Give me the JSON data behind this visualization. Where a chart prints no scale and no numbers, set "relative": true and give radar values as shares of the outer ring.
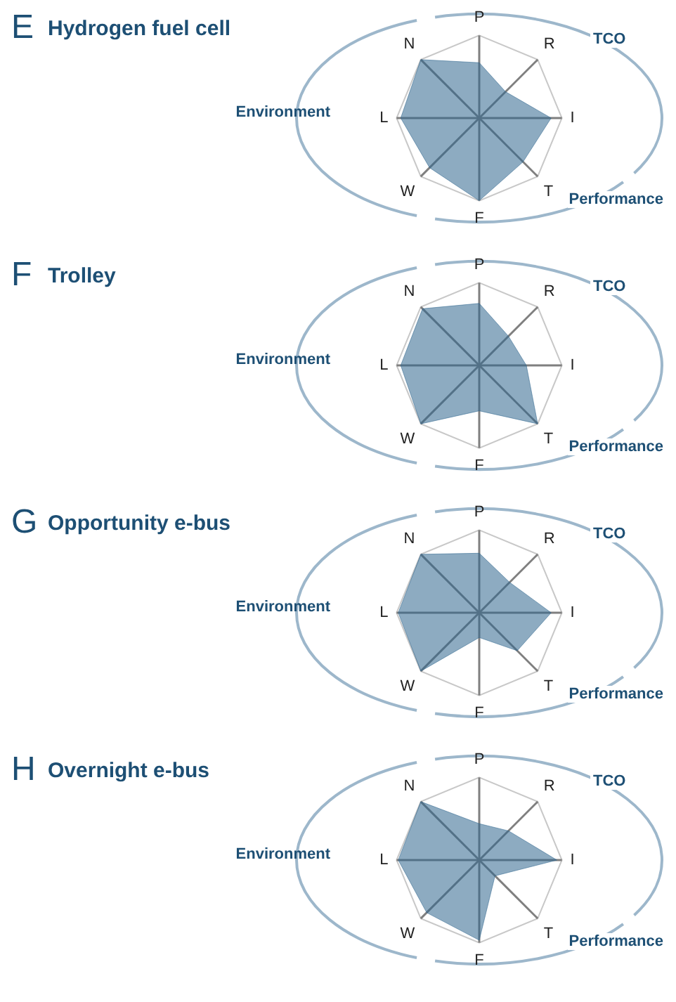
{
  "chart_data": [
    {
      "type": "radar",
      "title": "Hydrogen fuel cell",
      "annotations": [
        "E",
        "TCO",
        "Performance",
        "Environment"
      ],
      "categories": [
        "P",
        "R",
        "I",
        "T",
        "F",
        "W",
        "L",
        "N"
      ],
      "relative": true,
      "grid": false,
      "legend": false,
      "marker": "none",
      "series": [
        {
          "color": "#2f668e",
          "values": [
            0.67,
            0.45,
            0.87,
            0.75,
            1.0,
            0.85,
            0.95,
            1.0
          ]
        }
      ]
    },
    {
      "type": "radar",
      "title": "Trolley",
      "annotations": [
        "F",
        "TCO",
        "Performance",
        "Environment"
      ],
      "categories": [
        "P",
        "R",
        "I",
        "T",
        "F",
        "W",
        "L",
        "N"
      ],
      "relative": true,
      "grid": false,
      "legend": false,
      "marker": "none",
      "series": [
        {
          "color": "#2f668e",
          "values": [
            0.75,
            0.5,
            0.57,
            1.0,
            0.55,
            1.0,
            0.95,
            0.97
          ]
        }
      ]
    },
    {
      "type": "radar",
      "title": "Opportunity e-bus",
      "annotations": [
        "G",
        "TCO",
        "Performance",
        "Environment"
      ],
      "categories": [
        "P",
        "R",
        "I",
        "T",
        "F",
        "W",
        "L",
        "N"
      ],
      "relative": true,
      "grid": false,
      "legend": false,
      "marker": "none",
      "series": [
        {
          "color": "#2f668e",
          "values": [
            0.72,
            0.52,
            0.87,
            0.65,
            0.3,
            1.0,
            0.98,
            1.0
          ]
        }
      ]
    },
    {
      "type": "radar",
      "title": "Overnight e-bus",
      "annotations": [
        "H",
        "TCO",
        "Performance",
        "Environment"
      ],
      "categories": [
        "P",
        "R",
        "I",
        "T",
        "F",
        "W",
        "L",
        "N"
      ],
      "relative": true,
      "grid": false,
      "legend": false,
      "marker": "none",
      "series": [
        {
          "color": "#2f668e",
          "values": [
            0.44,
            0.5,
            0.94,
            0.27,
            0.97,
            0.9,
            0.98,
            1.0
          ]
        }
      ]
    }
  ]
}
